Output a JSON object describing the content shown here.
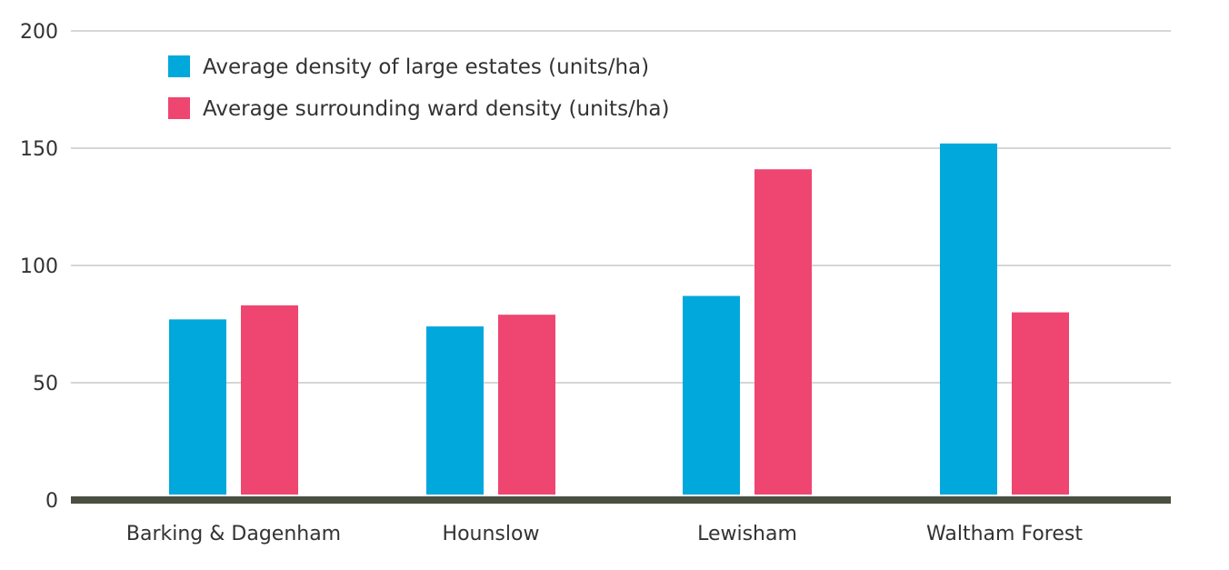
{
  "chart_data": {
    "type": "bar",
    "categories": [
      "Barking & Dagenham",
      "Hounslow",
      "Lewisham",
      "Waltham Forest"
    ],
    "series": [
      {
        "name": "Average density of large estates (units/ha)",
        "color": "#00a8dc",
        "values": [
          77,
          74,
          87,
          152
        ]
      },
      {
        "name": "Average surrounding ward density (units/ha)",
        "color": "#ee4670",
        "values": [
          83,
          79,
          141,
          80
        ]
      }
    ],
    "yticks": [
      "0",
      "50",
      "100",
      "150",
      "200"
    ],
    "ylim": [
      0,
      200
    ],
    "grid": true,
    "legend_position": "top-left"
  }
}
